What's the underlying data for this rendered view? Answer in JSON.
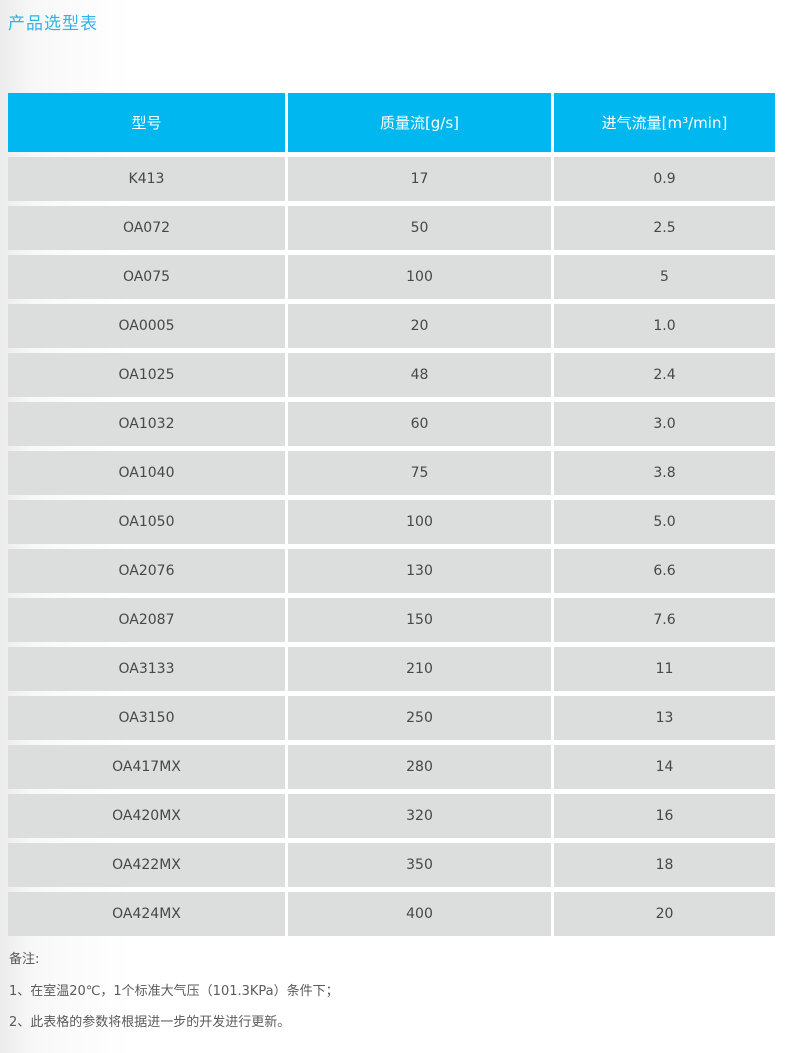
{
  "page": {
    "title": "产品选型表"
  },
  "table": {
    "columns": [
      "型号",
      "质量流[g/s]",
      "进气流量[m³/min]"
    ],
    "rows": [
      [
        "K413",
        "17",
        "0.9"
      ],
      [
        "OA072",
        "50",
        "2.5"
      ],
      [
        "OA075",
        "100",
        "5"
      ],
      [
        "OA0005",
        "20",
        "1.0"
      ],
      [
        "OA1025",
        "48",
        "2.4"
      ],
      [
        "OA1032",
        "60",
        "3.0"
      ],
      [
        "OA1040",
        "75",
        "3.8"
      ],
      [
        "OA1050",
        "100",
        "5.0"
      ],
      [
        "OA2076",
        "130",
        "6.6"
      ],
      [
        "OA2087",
        "150",
        "7.6"
      ],
      [
        "OA3133",
        "210",
        "11"
      ],
      [
        "OA3150",
        "250",
        "13"
      ],
      [
        "OA417MX",
        "280",
        "14"
      ],
      [
        "OA420MX",
        "320",
        "16"
      ],
      [
        "OA422MX",
        "350",
        "18"
      ],
      [
        "OA424MX",
        "400",
        "20"
      ]
    ]
  },
  "notes": {
    "label": "备注:",
    "items": [
      "1、在室温20℃，1个标准大气压（101.3KPa）条件下；",
      "2、此表格的参数将根据进一步的开发进行更新。"
    ]
  },
  "colors": {
    "title_text": "#2cb3e8",
    "header_bg": "#01b7ef",
    "header_text": "#ffffff",
    "row_bg": "#dcdddd",
    "row_text": "#474747",
    "note_text": "#5a5a5a"
  }
}
